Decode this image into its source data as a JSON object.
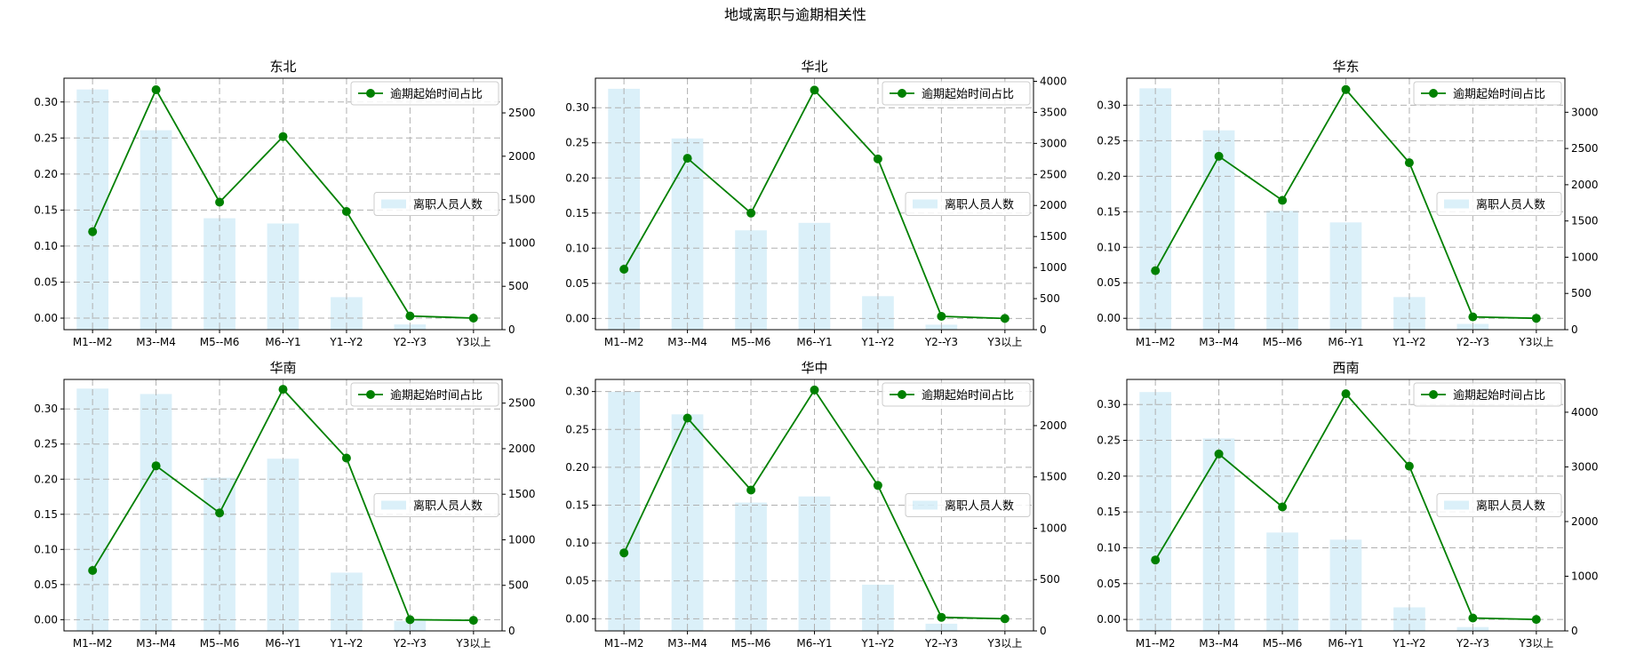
{
  "figure_title": "地域离职与逾期相关性",
  "colors": {
    "bar": "#87CEEB",
    "line": "#008000",
    "grid": "#b0b0b0",
    "axis": "#000000"
  },
  "chart_data": [
    {
      "type": "bar+line",
      "title": "东北",
      "categories": [
        "M1--M2",
        "M3--M4",
        "M5--M6",
        "M6--Y1",
        "Y1--Y2",
        "Y2--Y3",
        "Y3以上"
      ],
      "bar_series": {
        "name": "离职人员人数",
        "values": [
          2770,
          2300,
          1285,
          1225,
          375,
          60,
          0
        ]
      },
      "line_series": {
        "name": "逾期起始时间占比",
        "values": [
          0.12,
          0.317,
          0.161,
          0.252,
          0.148,
          0.003,
          0.0
        ]
      },
      "ylim_left": [
        -0.016,
        0.333
      ],
      "yticks_left": [
        "0.00",
        "0.05",
        "0.10",
        "0.15",
        "0.20",
        "0.25",
        "0.30"
      ],
      "ylim_right": [
        0,
        2900
      ],
      "yticks_right": [
        "0",
        "500",
        "1000",
        "1500",
        "2000",
        "2500"
      ],
      "grid": true,
      "legend_line": "top-right",
      "legend_bar": "center-right"
    },
    {
      "type": "bar+line",
      "title": "华北",
      "categories": [
        "M1--M2",
        "M3--M4",
        "M5--M6",
        "M6--Y1",
        "Y1--Y2",
        "Y2--Y3",
        "Y3以上"
      ],
      "bar_series": {
        "name": "离职人员人数",
        "values": [
          3880,
          3080,
          1600,
          1720,
          540,
          80,
          0
        ]
      },
      "line_series": {
        "name": "逾期起始时间占比",
        "values": [
          0.07,
          0.228,
          0.15,
          0.325,
          0.227,
          0.003,
          0.0
        ]
      },
      "ylim_left": [
        -0.016,
        0.342
      ],
      "yticks_left": [
        "0.00",
        "0.05",
        "0.10",
        "0.15",
        "0.20",
        "0.25",
        "0.30"
      ],
      "ylim_right": [
        0,
        4050
      ],
      "yticks_right": [
        "0",
        "500",
        "1000",
        "1500",
        "2000",
        "2500",
        "3000",
        "3500",
        "4000"
      ],
      "grid": true,
      "legend_line": "top-right",
      "legend_bar": "center-right"
    },
    {
      "type": "bar+line",
      "title": "华东",
      "categories": [
        "M1--M2",
        "M3--M4",
        "M5--M6",
        "M6--Y1",
        "Y1--Y2",
        "Y2--Y3",
        "Y3以上"
      ],
      "bar_series": {
        "name": "离职人员人数",
        "values": [
          3330,
          2750,
          1640,
          1480,
          450,
          80,
          0
        ]
      },
      "line_series": {
        "name": "逾期起始时间占比",
        "values": [
          0.067,
          0.228,
          0.166,
          0.322,
          0.219,
          0.002,
          0.0
        ]
      },
      "ylim_left": [
        -0.016,
        0.338
      ],
      "yticks_left": [
        "0.00",
        "0.05",
        "0.10",
        "0.15",
        "0.20",
        "0.25",
        "0.30"
      ],
      "ylim_right": [
        0,
        3470
      ],
      "yticks_right": [
        "0",
        "500",
        "1000",
        "1500",
        "2000",
        "2500",
        "3000"
      ],
      "grid": true,
      "legend_line": "top-right",
      "legend_bar": "center-right"
    },
    {
      "type": "bar+line",
      "title": "华南",
      "categories": [
        "M1--M2",
        "M3--M4",
        "M5--M6",
        "M6--Y1",
        "Y1--Y2",
        "Y2--Y3",
        "Y3以上"
      ],
      "bar_series": {
        "name": "离职人员人数",
        "values": [
          2660,
          2600,
          1680,
          1890,
          640,
          110,
          0
        ]
      },
      "line_series": {
        "name": "逾期起始时间占比",
        "values": [
          0.07,
          0.219,
          0.152,
          0.328,
          0.23,
          0.0,
          -0.001
        ]
      },
      "ylim_left": [
        -0.016,
        0.342
      ],
      "yticks_left": [
        "0.00",
        "0.05",
        "0.10",
        "0.15",
        "0.20",
        "0.25",
        "0.30"
      ],
      "ylim_right": [
        0,
        2760
      ],
      "yticks_right": [
        "0",
        "500",
        "1000",
        "1500",
        "2000",
        "2500"
      ],
      "grid": true,
      "legend_line": "top-right",
      "legend_bar": "center-right"
    },
    {
      "type": "bar+line",
      "title": "华中",
      "categories": [
        "M1--M2",
        "M3--M4",
        "M5--M6",
        "M6--Y1",
        "Y1--Y2",
        "Y2--Y3",
        "Y3以上"
      ],
      "bar_series": {
        "name": "离职人员人数",
        "values": [
          2330,
          2110,
          1250,
          1310,
          450,
          70,
          0
        ]
      },
      "line_series": {
        "name": "逾期起始时间占比",
        "values": [
          0.087,
          0.265,
          0.17,
          0.302,
          0.176,
          0.002,
          0.0
        ]
      },
      "ylim_left": [
        -0.016,
        0.316
      ],
      "yticks_left": [
        "0.00",
        "0.05",
        "0.10",
        "0.15",
        "0.20",
        "0.25",
        "0.30"
      ],
      "ylim_right": [
        0,
        2450
      ],
      "yticks_right": [
        "0",
        "500",
        "1000",
        "1500",
        "2000"
      ],
      "grid": true,
      "legend_line": "top-right",
      "legend_bar": "center-right"
    },
    {
      "type": "bar+line",
      "title": "西南",
      "categories": [
        "M1--M2",
        "M3--M4",
        "M5--M6",
        "M6--Y1",
        "Y1--Y2",
        "Y2--Y3",
        "Y3以上"
      ],
      "bar_series": {
        "name": "离职人员人数",
        "values": [
          4370,
          3520,
          1800,
          1670,
          430,
          70,
          0
        ]
      },
      "line_series": {
        "name": "逾期起始时间占比",
        "values": [
          0.083,
          0.231,
          0.157,
          0.315,
          0.214,
          0.002,
          0.0
        ]
      },
      "ylim_left": [
        -0.016,
        0.335
      ],
      "yticks_left": [
        "0.00",
        "0.05",
        "0.10",
        "0.15",
        "0.20",
        "0.25",
        "0.30"
      ],
      "ylim_right": [
        0,
        4600
      ],
      "yticks_right": [
        "0",
        "1000",
        "2000",
        "3000",
        "4000"
      ],
      "grid": true,
      "legend_line": "top-right",
      "legend_bar": "center-right"
    }
  ]
}
